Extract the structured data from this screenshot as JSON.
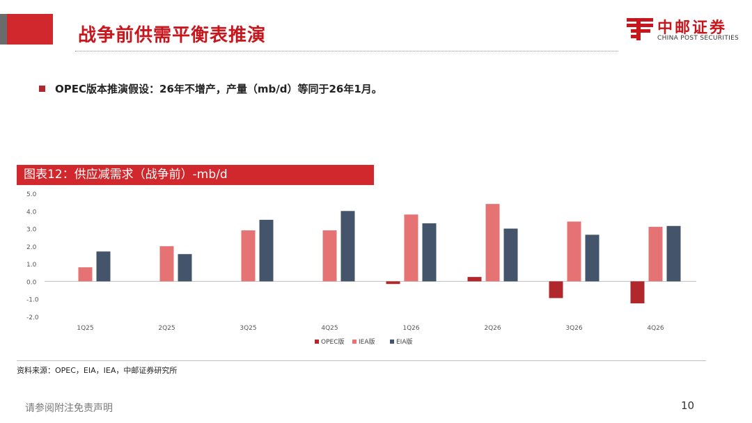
{
  "header": {
    "title": "战争前供需平衡表推演",
    "logo_cn": "中邮证券",
    "logo_en": "CHINA POST SECURITIES"
  },
  "bullet": {
    "text": "OPEC版本推演假设：26年不增产，产量（mb/d）等同于26年1月。"
  },
  "figure": {
    "label": "图表12：供应减需求（战争前）-mb/d"
  },
  "chart_data": {
    "type": "bar",
    "title": "图表12：供应减需求（战争前）-mb/d",
    "categories": [
      "1Q25",
      "2Q25",
      "3Q25",
      "4Q25",
      "1Q26",
      "2Q26",
      "3Q26",
      "4Q26"
    ],
    "series": [
      {
        "name": "OPEC版",
        "color": "#b0282c",
        "values": [
          null,
          null,
          null,
          null,
          -0.15,
          0.25,
          -0.95,
          -1.25
        ]
      },
      {
        "name": "IEA版",
        "color": "#e57373",
        "values": [
          0.8,
          2.0,
          2.9,
          2.9,
          3.8,
          4.4,
          3.4,
          3.1
        ]
      },
      {
        "name": "EIA版",
        "color": "#44546a",
        "values": [
          1.7,
          1.55,
          3.5,
          4.0,
          3.3,
          3.0,
          2.65,
          3.15
        ]
      }
    ],
    "yticks": [
      "5.0",
      "4.0",
      "3.0",
      "2.0",
      "1.0",
      "0.0",
      "-1.0",
      "-2.0"
    ],
    "ylim": [
      -2,
      5
    ],
    "xlabel": "",
    "ylabel": "",
    "legend_position": "bottom-center"
  },
  "footer": {
    "source": "资料来源：OPEC，EIA，IEA，中邮证券研究所",
    "disclaimer": "请参阅附注免责声明",
    "page_number": "10"
  },
  "colors": {
    "brand_red": "#c8161d",
    "bar_red": "#d0282c"
  }
}
